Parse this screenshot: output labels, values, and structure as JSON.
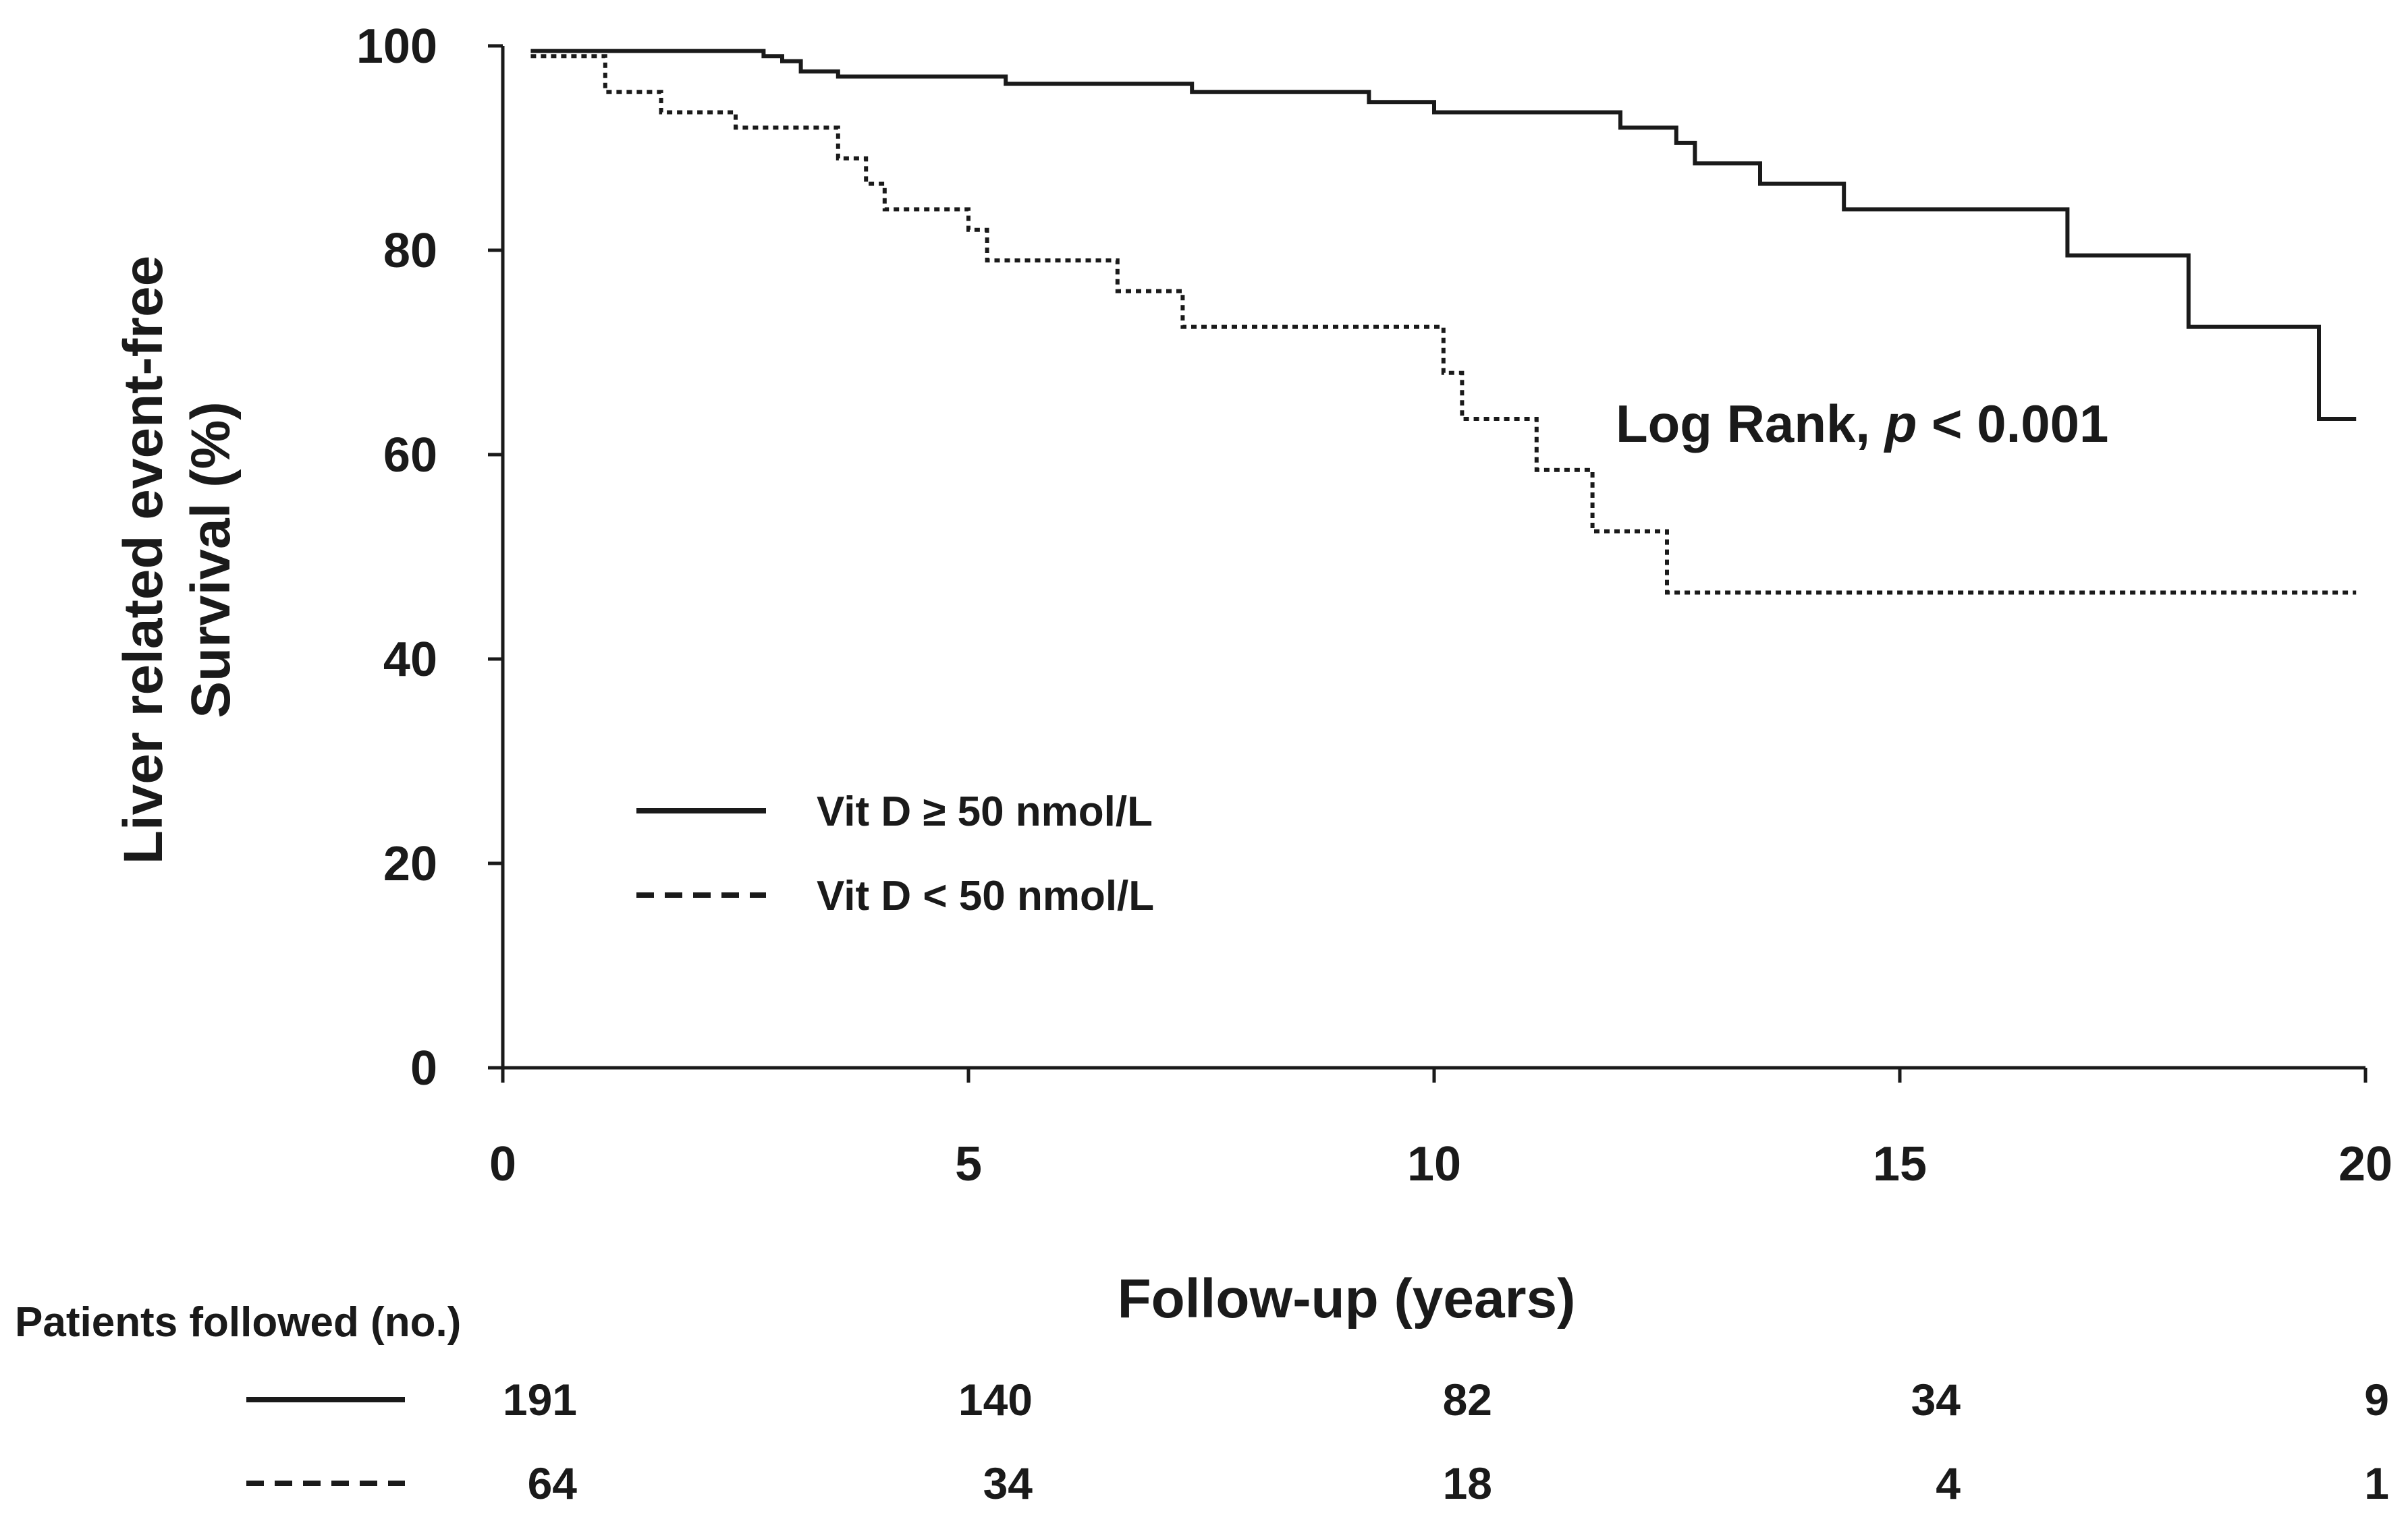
{
  "chart_data": {
    "type": "line",
    "subtype": "kaplan-meier step",
    "xlabel": "Follow-up (years)",
    "ylabel_lines": [
      "Liver related event-free",
      "Survival (%)"
    ],
    "xlim": [
      0,
      20
    ],
    "ylim": [
      0,
      100
    ],
    "x_ticks": [
      0,
      5,
      10,
      15,
      20
    ],
    "y_ticks": [
      0,
      20,
      40,
      60,
      80,
      100
    ],
    "x_tick_labels": [
      "0",
      "5",
      "10",
      "15",
      "20"
    ],
    "y_tick_labels": [
      "0",
      "20",
      "40",
      "60",
      "80",
      "100"
    ],
    "grid": false,
    "legend_position": "lower-left",
    "series": [
      {
        "name": "Vit D ≥ 50 nmol/L",
        "style": "solid",
        "color": "#1a1a1a",
        "points": [
          [
            0.3,
            99.5
          ],
          [
            2.8,
            99.5
          ],
          [
            2.8,
            99
          ],
          [
            3.0,
            99
          ],
          [
            3.0,
            98.5
          ],
          [
            3.2,
            98.5
          ],
          [
            3.2,
            97.5
          ],
          [
            3.6,
            97.5
          ],
          [
            3.6,
            97
          ],
          [
            5.4,
            97
          ],
          [
            5.4,
            96.3
          ],
          [
            7.4,
            96.3
          ],
          [
            7.4,
            95.5
          ],
          [
            9.3,
            95.5
          ],
          [
            9.3,
            94.5
          ],
          [
            10.0,
            94.5
          ],
          [
            10.0,
            93.5
          ],
          [
            12.0,
            93.5
          ],
          [
            12.0,
            92
          ],
          [
            12.6,
            92
          ],
          [
            12.6,
            90.5
          ],
          [
            12.8,
            90.5
          ],
          [
            12.8,
            88.5
          ],
          [
            13.5,
            88.5
          ],
          [
            13.5,
            86.5
          ],
          [
            14.4,
            86.5
          ],
          [
            14.4,
            84
          ],
          [
            16.8,
            84
          ],
          [
            16.8,
            79.5
          ],
          [
            18.1,
            79.5
          ],
          [
            18.1,
            72.5
          ],
          [
            19.5,
            72.5
          ],
          [
            19.5,
            63.5
          ],
          [
            19.9,
            63.5
          ]
        ]
      },
      {
        "name": "Vit D < 50 nmol/L",
        "style": "dotted",
        "color": "#1a1a1a",
        "points": [
          [
            0.3,
            99
          ],
          [
            1.1,
            99
          ],
          [
            1.1,
            95.5
          ],
          [
            1.7,
            95.5
          ],
          [
            1.7,
            93.5
          ],
          [
            2.5,
            93.5
          ],
          [
            2.5,
            92
          ],
          [
            3.6,
            92
          ],
          [
            3.6,
            89
          ],
          [
            3.9,
            89
          ],
          [
            3.9,
            86.5
          ],
          [
            4.1,
            86.5
          ],
          [
            4.1,
            84
          ],
          [
            5.0,
            84
          ],
          [
            5.0,
            82
          ],
          [
            5.2,
            82
          ],
          [
            5.2,
            79
          ],
          [
            6.6,
            79
          ],
          [
            6.6,
            76
          ],
          [
            7.3,
            76
          ],
          [
            7.3,
            72.5
          ],
          [
            10.1,
            72.5
          ],
          [
            10.1,
            68
          ],
          [
            10.3,
            68
          ],
          [
            10.3,
            63.5
          ],
          [
            11.1,
            63.5
          ],
          [
            11.1,
            58.5
          ],
          [
            11.7,
            58.5
          ],
          [
            11.7,
            52.5
          ],
          [
            12.5,
            52.5
          ],
          [
            12.5,
            46.5
          ],
          [
            19.9,
            46.5
          ]
        ]
      }
    ],
    "annotation": {
      "prefix": "Log Rank, ",
      "italic_symbol": "p",
      "suffix": " < 0.001"
    },
    "risk_table": {
      "title": "Patients followed (no.)",
      "timepoints": [
        0,
        5,
        10,
        15,
        20
      ],
      "rows": [
        {
          "series": "Vit D ≥ 50 nmol/L",
          "style": "solid",
          "values": [
            "191",
            "140",
            "82",
            "34",
            "9"
          ]
        },
        {
          "series": "Vit D < 50 nmol/L",
          "style": "dashed",
          "values": [
            "64",
            "34",
            "18",
            "4",
            "1"
          ]
        }
      ]
    }
  }
}
